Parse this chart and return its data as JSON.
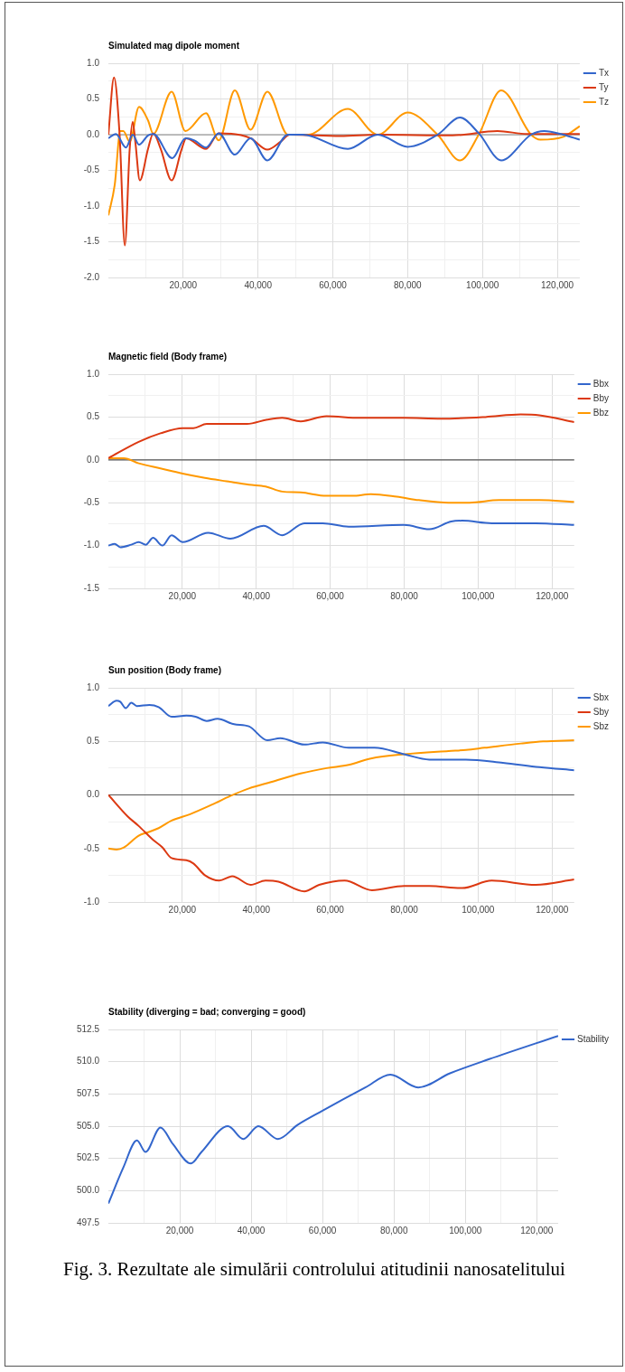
{
  "chart_data": [
    {
      "type": "line",
      "title": "Simulated mag dipole moment",
      "legend": "top right",
      "marker": "none",
      "line_style": "solid",
      "grid": true,
      "xlim": [
        0,
        126000
      ],
      "xticks": [
        {
          "value": 10000,
          "label": null
        },
        {
          "value": 20000,
          "label": "20,000"
        },
        {
          "value": 30000,
          "label": null
        },
        {
          "value": 40000,
          "label": "40,000"
        },
        {
          "value": 50000,
          "label": null
        },
        {
          "value": 60000,
          "label": "60,000"
        },
        {
          "value": 70000,
          "label": null
        },
        {
          "value": 80000,
          "label": "80,000"
        },
        {
          "value": 90000,
          "label": null
        },
        {
          "value": 100000,
          "label": "100,000"
        },
        {
          "value": 110000,
          "label": null
        },
        {
          "value": 120000,
          "label": "120,000"
        }
      ],
      "ylim": [
        -2,
        1
      ],
      "yticks": [
        {
          "value": -2,
          "label": "-2.0"
        },
        {
          "value": -1.75,
          "label": null
        },
        {
          "value": -1.5,
          "label": "-1.5"
        },
        {
          "value": -1.25,
          "label": null
        },
        {
          "value": -1,
          "label": "-1.0"
        },
        {
          "value": -0.75,
          "label": null
        },
        {
          "value": -0.5,
          "label": "-0.5"
        },
        {
          "value": -0.25,
          "label": null
        },
        {
          "value": 0,
          "label": "0.0"
        },
        {
          "value": 0.25,
          "label": null
        },
        {
          "value": 0.5,
          "label": "0.5"
        },
        {
          "value": 0.75,
          "label": null
        },
        {
          "value": 1,
          "label": "1.0"
        }
      ],
      "ref_lines": [
        {
          "axis": "y",
          "value": 0,
          "color": "#888888"
        }
      ],
      "series": [
        {
          "name": "Tx",
          "color": "#3366cc",
          "x": [
            0,
            2000,
            4700,
            6500,
            8200,
            10600,
            12000,
            17100,
            20600,
            23000,
            26100,
            29500,
            33800,
            38000,
            42500,
            48000,
            52000,
            64000,
            72000,
            80000,
            88000,
            94000,
            99000,
            105000,
            113000,
            116500,
            121600,
            126000
          ],
          "values": [
            -0.05,
            0.01,
            -0.18,
            0,
            -0.14,
            -0.01,
            0.01,
            -0.33,
            -0.05,
            -0.08,
            -0.18,
            0.02,
            -0.28,
            -0.05,
            -0.36,
            0,
            0,
            -0.2,
            0,
            -0.17,
            0,
            0.24,
            0.02,
            -0.36,
            0,
            0.05,
            0,
            -0.07
          ]
        },
        {
          "name": "Ty",
          "color": "#dc3912",
          "x": [
            0,
            1500,
            3000,
            4400,
            5700,
            6500,
            7200,
            8400,
            10600,
            12000,
            14000,
            16900,
            19600,
            20800,
            26100,
            29500,
            33800,
            38000,
            42500,
            46000,
            48500,
            62000,
            72000,
            92000,
            104000,
            112000,
            126000
          ],
          "values": [
            0,
            0.8,
            0,
            -1.55,
            -0.2,
            0.18,
            -0.1,
            -0.64,
            -0.2,
            0.02,
            -0.2,
            -0.64,
            -0.2,
            -0.05,
            -0.2,
            0.02,
            null,
            -0.05,
            -0.21,
            -0.1,
            0,
            -0.02,
            0,
            -0.01,
            0.05,
            0.01,
            0.01
          ]
        },
        {
          "name": "Tz",
          "color": "#ff9900",
          "x": [
            0,
            1700,
            3200,
            4000,
            5700,
            8200,
            10600,
            12000,
            16900,
            20600,
            26100,
            29500,
            33800,
            38000,
            42500,
            48000,
            53400,
            64000,
            72000,
            80000,
            88000,
            94000,
            99000,
            105000,
            113000,
            115500,
            121600,
            126000
          ],
          "values": [
            -1.13,
            -0.7,
            0.05,
            0.05,
            -0.1,
            0.39,
            0.2,
            0.01,
            0.6,
            0.05,
            0.3,
            -0.08,
            0.62,
            0.07,
            0.6,
            0,
            0,
            0.36,
            0,
            0.31,
            0,
            -0.36,
            0,
            0.62,
            0,
            -0.07,
            -0.03,
            0.12
          ]
        }
      ]
    },
    {
      "type": "line",
      "title": "Magnetic field (Body frame)",
      "legend": "top right",
      "marker": "none",
      "line_style": "solid",
      "grid": true,
      "xlim": [
        0,
        126000
      ],
      "xticks": [
        {
          "value": 10000,
          "label": null
        },
        {
          "value": 20000,
          "label": "20,000"
        },
        {
          "value": 30000,
          "label": null
        },
        {
          "value": 40000,
          "label": "40,000"
        },
        {
          "value": 50000,
          "label": null
        },
        {
          "value": 60000,
          "label": "60,000"
        },
        {
          "value": 70000,
          "label": null
        },
        {
          "value": 80000,
          "label": "80,000"
        },
        {
          "value": 90000,
          "label": null
        },
        {
          "value": 100000,
          "label": "100,000"
        },
        {
          "value": 110000,
          "label": null
        },
        {
          "value": 120000,
          "label": "120,000"
        }
      ],
      "ylim": [
        -1.5,
        1
      ],
      "yticks": [
        {
          "value": -1.5,
          "label": "-1.5"
        },
        {
          "value": -1.25,
          "label": null
        },
        {
          "value": -1,
          "label": "-1.0"
        },
        {
          "value": -0.75,
          "label": null
        },
        {
          "value": -0.5,
          "label": "-0.5"
        },
        {
          "value": -0.25,
          "label": null
        },
        {
          "value": 0,
          "label": "0.0"
        },
        {
          "value": 0.25,
          "label": null
        },
        {
          "value": 0.5,
          "label": "0.5"
        },
        {
          "value": 0.75,
          "label": null
        },
        {
          "value": 1,
          "label": "1.0"
        }
      ],
      "ref_lines": [
        {
          "axis": "y",
          "value": 0,
          "color": "#555555"
        }
      ],
      "series": [
        {
          "name": "Bbx",
          "color": "#3366cc",
          "x": [
            0,
            1700,
            3200,
            6200,
            8200,
            10100,
            12100,
            14600,
            17100,
            20100,
            27000,
            33000,
            42000,
            47000,
            53000,
            58000,
            65000,
            80000,
            86800,
            92700,
            95700,
            103700,
            115600,
            126000
          ],
          "values": [
            -1.0,
            -0.98,
            -1.02,
            -0.99,
            -0.96,
            -0.99,
            -0.91,
            -1.0,
            -0.88,
            -0.96,
            -0.85,
            -0.92,
            -0.77,
            -0.88,
            -0.74,
            -0.74,
            -0.78,
            -0.76,
            -0.81,
            -0.72,
            -0.71,
            -0.74,
            -0.74,
            -0.76
          ]
        },
        {
          "name": "Bby",
          "color": "#dc3912",
          "x": [
            0,
            8200,
            14100,
            20100,
            23000,
            26600,
            32000,
            37500,
            43000,
            47000,
            52000,
            59000,
            68000,
            80000,
            90000,
            102000,
            111500,
            116600,
            126000
          ],
          "values": [
            0.02,
            0.21,
            0.31,
            0.37,
            0.37,
            0.42,
            0.42,
            0.42,
            0.47,
            0.49,
            0.45,
            0.51,
            0.49,
            0.49,
            0.48,
            0.5,
            0.53,
            0.52,
            0.44
          ]
        },
        {
          "name": "Bbz",
          "color": "#ff9900",
          "x": [
            0,
            4200,
            8200,
            14100,
            20100,
            26100,
            32000,
            38000,
            42500,
            47000,
            52000,
            59000,
            66000,
            71000,
            78000,
            84000,
            92000,
            97700,
            105700,
            116600,
            126000
          ],
          "values": [
            0.02,
            0.02,
            -0.04,
            -0.1,
            -0.16,
            -0.21,
            -0.25,
            -0.29,
            -0.31,
            -0.37,
            -0.38,
            -0.42,
            -0.42,
            -0.4,
            -0.43,
            -0.47,
            -0.5,
            -0.5,
            -0.47,
            -0.47,
            -0.49
          ]
        }
      ]
    },
    {
      "type": "line",
      "title": "Sun position (Body frame)",
      "legend": "top right",
      "marker": "none",
      "line_style": "solid",
      "grid": true,
      "xlim": [
        0,
        126000
      ],
      "xticks": [
        {
          "value": 10000,
          "label": null
        },
        {
          "value": 20000,
          "label": "20,000"
        },
        {
          "value": 30000,
          "label": null
        },
        {
          "value": 40000,
          "label": "40,000"
        },
        {
          "value": 50000,
          "label": null
        },
        {
          "value": 60000,
          "label": "60,000"
        },
        {
          "value": 70000,
          "label": null
        },
        {
          "value": 80000,
          "label": "80,000"
        },
        {
          "value": 90000,
          "label": null
        },
        {
          "value": 100000,
          "label": "100,000"
        },
        {
          "value": 110000,
          "label": null
        },
        {
          "value": 120000,
          "label": "120,000"
        }
      ],
      "ylim": [
        -1,
        1
      ],
      "yticks": [
        {
          "value": -1,
          "label": "-1.0"
        },
        {
          "value": -0.75,
          "label": null
        },
        {
          "value": -0.5,
          "label": "-0.5"
        },
        {
          "value": -0.25,
          "label": null
        },
        {
          "value": 0,
          "label": "0.0"
        },
        {
          "value": 0.25,
          "label": null
        },
        {
          "value": 0.5,
          "label": "0.5"
        },
        {
          "value": 0.75,
          "label": null
        },
        {
          "value": 1,
          "label": "1.0"
        }
      ],
      "ref_lines": [
        {
          "axis": "y",
          "value": 0,
          "color": "#555555"
        }
      ],
      "series": [
        {
          "name": "Sbx",
          "color": "#3366cc",
          "x": [
            0,
            2200,
            3200,
            4700,
            6200,
            7700,
            11100,
            13600,
            17100,
            21100,
            23600,
            26600,
            29500,
            34000,
            38000,
            43000,
            46500,
            53000,
            58000,
            65000,
            72000,
            80000,
            86800,
            96700,
            106700,
            116600,
            126000
          ],
          "values": [
            0.83,
            0.88,
            0.87,
            0.81,
            0.86,
            0.83,
            0.84,
            0.82,
            0.73,
            0.74,
            0.73,
            0.69,
            0.71,
            0.66,
            0.64,
            0.51,
            0.53,
            0.47,
            0.49,
            0.44,
            0.44,
            0.38,
            0.33,
            0.33,
            0.3,
            0.26,
            0.23
          ]
        },
        {
          "name": "Sby",
          "color": "#dc3912",
          "x": [
            0,
            5200,
            8200,
            12100,
            14600,
            17100,
            21100,
            23000,
            26100,
            30000,
            33500,
            38500,
            42500,
            46000,
            53000,
            57000,
            63900,
            71300,
            80000,
            86800,
            95700,
            103700,
            115600,
            126000
          ],
          "values": [
            0,
            -0.2,
            -0.29,
            -0.42,
            -0.49,
            -0.59,
            -0.61,
            -0.64,
            -0.75,
            -0.8,
            -0.76,
            -0.84,
            -0.8,
            -0.81,
            -0.9,
            -0.84,
            -0.8,
            -0.89,
            -0.85,
            -0.85,
            -0.87,
            -0.8,
            -0.84,
            -0.79
          ]
        },
        {
          "name": "Sbz",
          "color": "#ff9900",
          "x": [
            0,
            2200,
            4200,
            8200,
            10600,
            13600,
            17100,
            22100,
            28100,
            33000,
            38000,
            44000,
            52000,
            59000,
            65000,
            71000,
            80000,
            92000,
            96700,
            101700,
            111600,
            117600,
            126000
          ],
          "values": [
            -0.5,
            -0.51,
            -0.49,
            -0.38,
            -0.35,
            -0.31,
            -0.24,
            -0.18,
            -0.09,
            -0.01,
            0.06,
            0.12,
            0.2,
            0.25,
            0.28,
            0.34,
            0.38,
            0.41,
            0.42,
            0.44,
            0.48,
            0.5,
            0.51
          ]
        }
      ]
    },
    {
      "type": "line",
      "title": "Stability (diverging = bad; converging = good)",
      "legend": "top right",
      "marker": "none",
      "line_style": "solid",
      "grid": true,
      "xlim": [
        0,
        126000
      ],
      "xticks": [
        {
          "value": 10000,
          "label": null
        },
        {
          "value": 20000,
          "label": "20,000"
        },
        {
          "value": 30000,
          "label": null
        },
        {
          "value": 40000,
          "label": "40,000"
        },
        {
          "value": 50000,
          "label": null
        },
        {
          "value": 60000,
          "label": "60,000"
        },
        {
          "value": 70000,
          "label": null
        },
        {
          "value": 80000,
          "label": "80,000"
        },
        {
          "value": 90000,
          "label": null
        },
        {
          "value": 100000,
          "label": "100,000"
        },
        {
          "value": 110000,
          "label": null
        },
        {
          "value": 120000,
          "label": "120,000"
        }
      ],
      "ylim": [
        497.5,
        512.5
      ],
      "yticks": [
        {
          "value": 497.5,
          "label": "497.5"
        },
        {
          "value": 500,
          "label": "500.0"
        },
        {
          "value": 502.5,
          "label": "502.5"
        },
        {
          "value": 505,
          "label": "505.0"
        },
        {
          "value": 507.5,
          "label": "507.5"
        },
        {
          "value": 510,
          "label": "510.0"
        },
        {
          "value": 512.5,
          "label": "512.5"
        }
      ],
      "annotations": [
        "Fig. 3. Rezultate ale simulării controlului atitudinii nanosatelitului"
      ],
      "series": [
        {
          "name": "Stability",
          "color": "#3366cc",
          "x": [
            0,
            4200,
            8000,
            10400,
            14600,
            18100,
            23100,
            26100,
            33500,
            37800,
            42000,
            47500,
            53000,
            60000,
            72000,
            79000,
            86800,
            95700,
            106700,
            126000
          ],
          "values": [
            499.0,
            501.8,
            503.9,
            503.0,
            504.9,
            503.6,
            502.1,
            503.0,
            505.0,
            504.0,
            505.0,
            504.0,
            505.1,
            506.2,
            508.0,
            509.0,
            508.0,
            509.1,
            510.2,
            512.0
          ]
        }
      ]
    }
  ]
}
